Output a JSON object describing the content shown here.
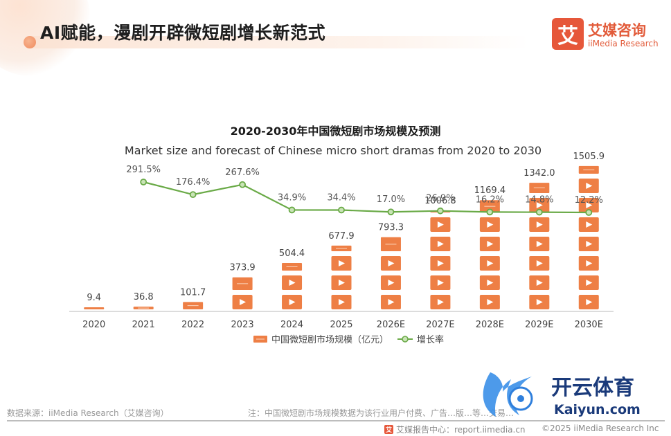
{
  "page": {
    "title": "AI赋能，漫剧开辟微短剧增长新范式"
  },
  "brand": {
    "name": "艾媒咨询",
    "name_en": "iiMedia Research",
    "badge_char": "艾",
    "color": "#e6573a"
  },
  "chart_data": {
    "type": "bar",
    "title": "2020-2030年中国微短剧市场规模及预测",
    "subtitle": "Market size and forecast of Chinese micro short dramas from 2020 to 2030",
    "categories": [
      "2020",
      "2021",
      "2022",
      "2023",
      "2024",
      "2025",
      "2026E",
      "2027E",
      "2028E",
      "2029E",
      "2030E"
    ],
    "series": [
      {
        "name": "中国微短剧市场规模（亿元）",
        "type": "bar",
        "values": [
          9.4,
          36.8,
          101.7,
          373.9,
          504.4,
          677.9,
          793.3,
          1006.8,
          1169.4,
          1342.0,
          1505.9
        ],
        "labels": [
          "9.4",
          "36.8",
          "101.7",
          "373.9",
          "504.4",
          "677.9",
          "793.3",
          "1006.8",
          "1169.4",
          "1342.0",
          "1505.9"
        ],
        "color": "#ee7f45"
      },
      {
        "name": "增长率",
        "type": "line",
        "values": [
          null,
          291.5,
          176.4,
          267.6,
          34.9,
          34.4,
          17.0,
          26.9,
          16.2,
          14.8,
          12.2
        ],
        "labels": [
          "",
          "291.5%",
          "176.4%",
          "267.6%",
          "34.9%",
          "34.4%",
          "17.0%",
          "26.9%",
          "16.2%",
          "14.8%",
          "12.2%"
        ],
        "color": "#6aaa47"
      }
    ],
    "legend": [
      "中国微短剧市场规模（亿元）",
      "增长率"
    ],
    "legend_position": "bottom",
    "grid": false
  },
  "footer": {
    "source": "数据来源：iiMedia Research（艾媒咨询）",
    "note": "注：中国微短剧市场规模数据为该行业用户付费、广告…版…等…交易…",
    "center_label": "艾媒报告中心：report.iimedia.cn",
    "copyright": "©2025  iiMedia Research  Inc"
  },
  "watermark": {
    "cn": "开云体育",
    "en": "Kaiyun.com"
  }
}
